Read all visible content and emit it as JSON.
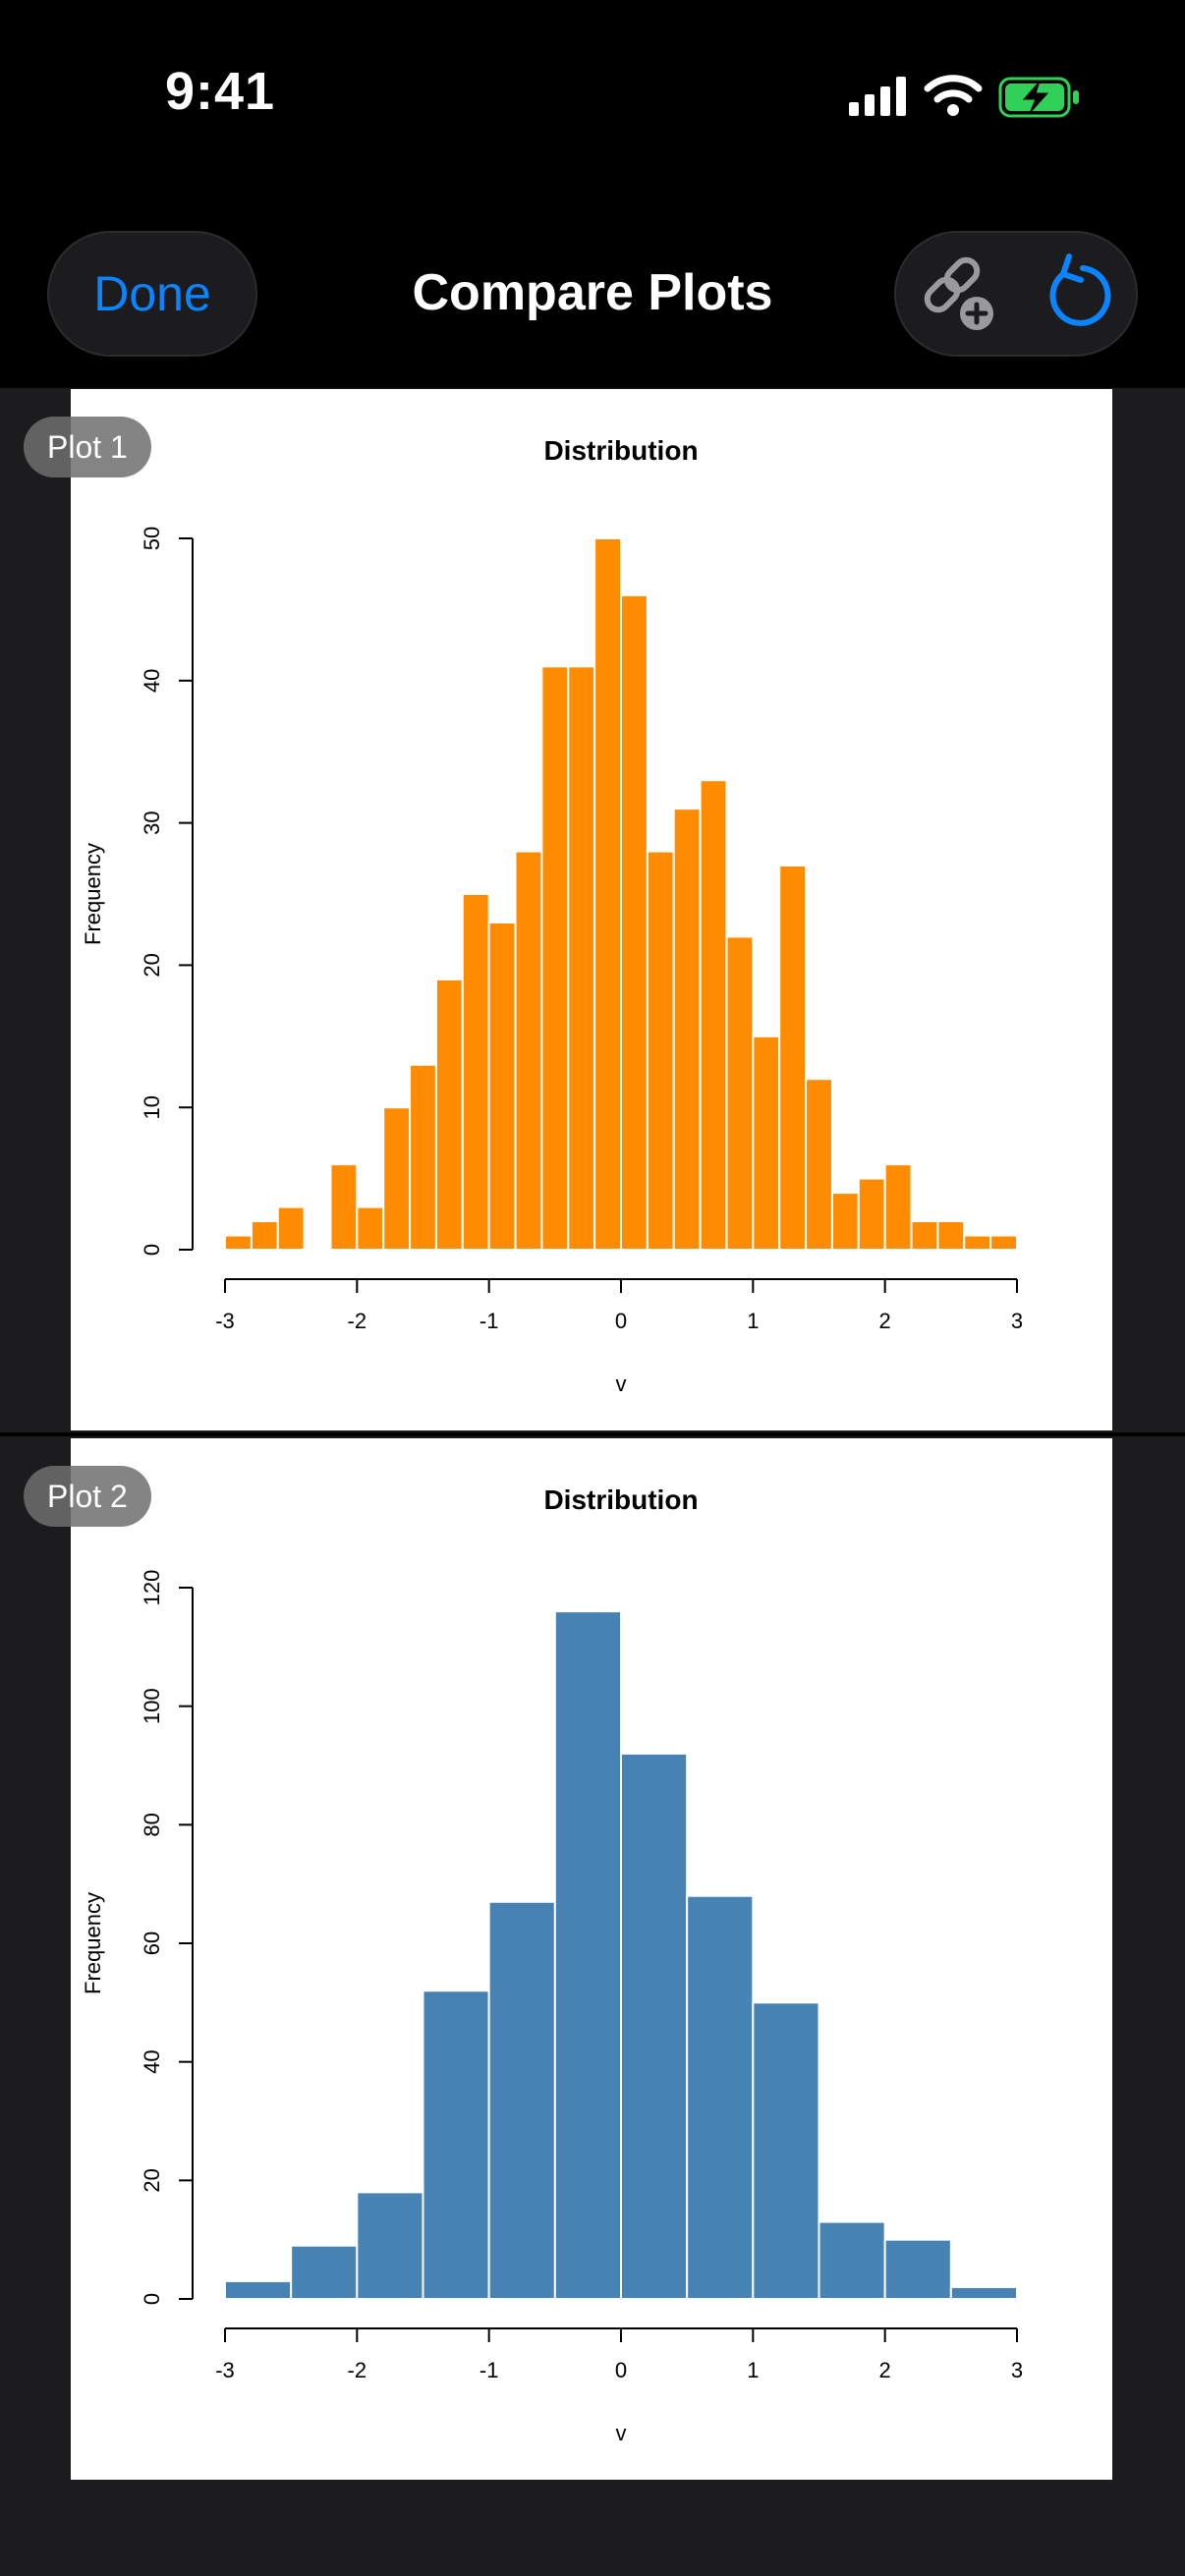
{
  "status_bar": {
    "time": "9:41"
  },
  "nav": {
    "done_label": "Done",
    "title": "Compare Plots"
  },
  "colors": {
    "accent": "#0a84ff",
    "plot1_fill": "#ff8c00",
    "plot2_fill": "#4682b4",
    "battery": "#30d158"
  },
  "icons": {
    "link_add": "link-plus-icon",
    "refresh": "refresh-icon"
  },
  "plots": [
    {
      "badge": "Plot 1"
    },
    {
      "badge": "Plot 2"
    }
  ],
  "chart_data": [
    {
      "type": "bar",
      "title": "Distribution",
      "xlabel": "v",
      "ylabel": "Frequency",
      "xlim": [
        -3,
        3
      ],
      "ylim": [
        0,
        50
      ],
      "xticks": [
        -3,
        -2,
        -1,
        0,
        1,
        2,
        3
      ],
      "yticks": [
        0,
        10,
        20,
        30,
        40,
        50
      ],
      "bin_width": 0.2,
      "x": [
        -3.0,
        -2.8,
        -2.6,
        -2.4,
        -2.2,
        -2.0,
        -1.8,
        -1.6,
        -1.4,
        -1.2,
        -1.0,
        -0.8,
        -0.6,
        -0.4,
        -0.2,
        0.0,
        0.2,
        0.4,
        0.6,
        0.8,
        1.0,
        1.2,
        1.4,
        1.6,
        1.8,
        2.0,
        2.2,
        2.4,
        2.6,
        2.8
      ],
      "values": [
        1,
        2,
        3,
        0,
        6,
        3,
        10,
        13,
        19,
        25,
        23,
        28,
        41,
        41,
        50,
        46,
        28,
        31,
        33,
        22,
        15,
        27,
        12,
        4,
        5,
        6,
        2,
        2,
        1,
        1
      ],
      "grid": false,
      "legend": "none"
    },
    {
      "type": "bar",
      "title": "Distribution",
      "xlabel": "v",
      "ylabel": "Frequency",
      "xlim": [
        -3,
        3
      ],
      "ylim": [
        0,
        120
      ],
      "xticks": [
        -3,
        -2,
        -1,
        0,
        1,
        2,
        3
      ],
      "yticks": [
        0,
        20,
        40,
        60,
        80,
        100,
        120
      ],
      "bin_width": 0.5,
      "x": [
        -3.0,
        -2.5,
        -2.0,
        -1.5,
        -1.0,
        -0.5,
        0.0,
        0.5,
        1.0,
        1.5,
        2.0,
        2.5
      ],
      "values": [
        3,
        9,
        18,
        52,
        67,
        116,
        92,
        68,
        50,
        13,
        10,
        2
      ],
      "grid": false,
      "legend": "none"
    }
  ]
}
